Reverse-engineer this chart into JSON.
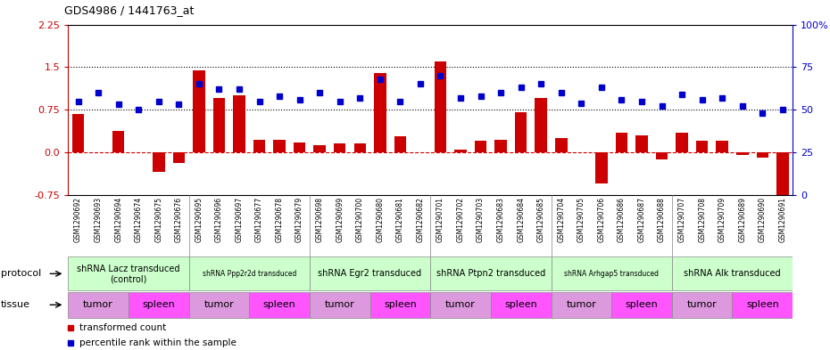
{
  "title": "GDS4986 / 1441763_at",
  "samples": [
    "GSM1290692",
    "GSM1290693",
    "GSM1290694",
    "GSM1290674",
    "GSM1290675",
    "GSM1290676",
    "GSM1290695",
    "GSM1290696",
    "GSM1290697",
    "GSM1290677",
    "GSM1290678",
    "GSM1290679",
    "GSM1290698",
    "GSM1290699",
    "GSM1290700",
    "GSM1290680",
    "GSM1290681",
    "GSM1290682",
    "GSM1290701",
    "GSM1290702",
    "GSM1290703",
    "GSM1290683",
    "GSM1290684",
    "GSM1290685",
    "GSM1290704",
    "GSM1290705",
    "GSM1290706",
    "GSM1290686",
    "GSM1290687",
    "GSM1290688",
    "GSM1290707",
    "GSM1290708",
    "GSM1290709",
    "GSM1290689",
    "GSM1290690",
    "GSM1290691"
  ],
  "bar_values": [
    0.68,
    0.0,
    0.38,
    0.0,
    -0.35,
    -0.18,
    1.45,
    0.95,
    1.0,
    0.22,
    0.22,
    0.18,
    0.12,
    0.15,
    0.15,
    1.4,
    0.28,
    0.0,
    1.6,
    0.05,
    0.2,
    0.22,
    0.7,
    0.95,
    0.25,
    0.0,
    -0.55,
    0.35,
    0.3,
    -0.12,
    0.35,
    0.2,
    0.2,
    -0.05,
    -0.1,
    -0.75
  ],
  "dot_values": [
    55,
    60,
    53,
    50,
    55,
    53,
    65,
    62,
    62,
    55,
    58,
    56,
    60,
    55,
    57,
    68,
    55,
    65,
    70,
    57,
    58,
    60,
    63,
    65,
    60,
    54,
    63,
    56,
    55,
    52,
    59,
    56,
    57,
    52,
    48,
    50
  ],
  "protocols": [
    {
      "label": "shRNA Lacz transduced\n(control)",
      "start": 0,
      "end": 6,
      "color": "#ccffcc",
      "fontsize": 7
    },
    {
      "label": "shRNA Ppp2r2d transduced",
      "start": 6,
      "end": 12,
      "color": "#ccffcc",
      "fontsize": 5.5
    },
    {
      "label": "shRNA Egr2 transduced",
      "start": 12,
      "end": 18,
      "color": "#ccffcc",
      "fontsize": 7
    },
    {
      "label": "shRNA Ptpn2 transduced",
      "start": 18,
      "end": 24,
      "color": "#ccffcc",
      "fontsize": 7
    },
    {
      "label": "shRNA Arhgap5 transduced",
      "start": 24,
      "end": 30,
      "color": "#ccffcc",
      "fontsize": 5.5
    },
    {
      "label": "shRNA Alk transduced",
      "start": 30,
      "end": 36,
      "color": "#ccffcc",
      "fontsize": 7
    }
  ],
  "tissues": [
    {
      "label": "tumor",
      "start": 0,
      "end": 3
    },
    {
      "label": "spleen",
      "start": 3,
      "end": 6
    },
    {
      "label": "tumor",
      "start": 6,
      "end": 9
    },
    {
      "label": "spleen",
      "start": 9,
      "end": 12
    },
    {
      "label": "tumor",
      "start": 12,
      "end": 15
    },
    {
      "label": "spleen",
      "start": 15,
      "end": 18
    },
    {
      "label": "tumor",
      "start": 18,
      "end": 21
    },
    {
      "label": "spleen",
      "start": 21,
      "end": 24
    },
    {
      "label": "tumor",
      "start": 24,
      "end": 27
    },
    {
      "label": "spleen",
      "start": 27,
      "end": 30
    },
    {
      "label": "tumor",
      "start": 30,
      "end": 33
    },
    {
      "label": "spleen",
      "start": 33,
      "end": 36
    }
  ],
  "tumor_color": "#dd99dd",
  "spleen_color": "#ff55ff",
  "ylim": [
    -0.75,
    2.25
  ],
  "yticks_left": [
    -0.75,
    0.0,
    0.75,
    1.5,
    2.25
  ],
  "yticks_right": [
    0,
    25,
    50,
    75,
    100
  ],
  "hlines": [
    0.75,
    1.5
  ],
  "bar_color": "#cc0000",
  "dot_color": "#0000cc",
  "zero_line_color": "#cc0000",
  "hline_color": "#000000",
  "bar_width": 0.6
}
